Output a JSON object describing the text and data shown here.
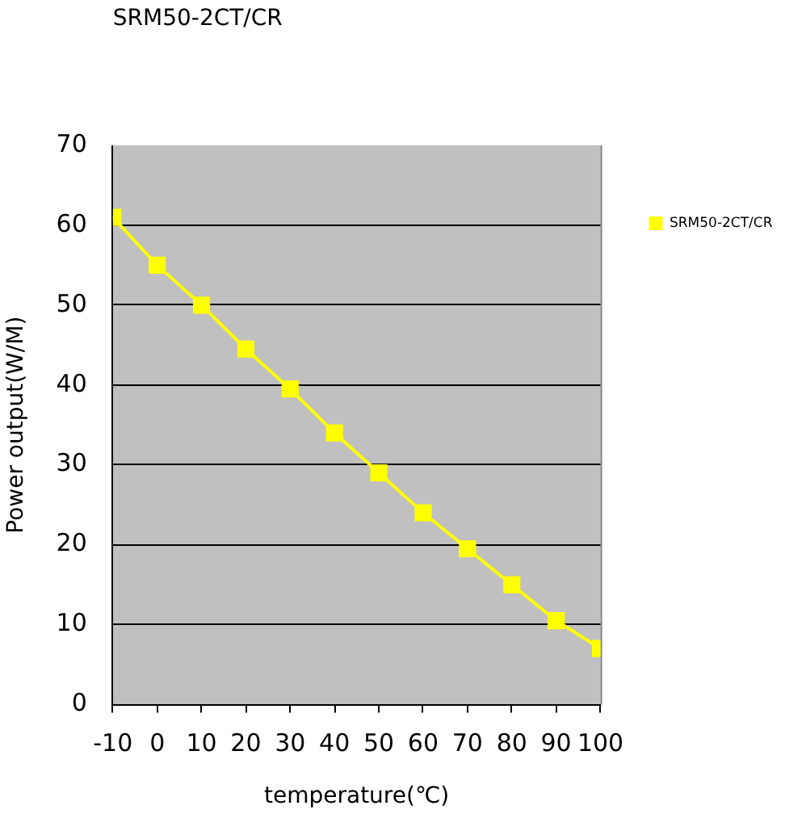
{
  "chart_data": {
    "type": "line",
    "title": "SRM50-2CT/CR",
    "xlabel": "temperature(℃)",
    "ylabel": "Power output(W/M)",
    "x": [
      -10,
      0,
      10,
      20,
      30,
      40,
      50,
      60,
      70,
      80,
      90,
      100
    ],
    "xlim": [
      -10,
      100
    ],
    "xticks": [
      -10,
      0,
      10,
      20,
      30,
      40,
      50,
      60,
      70,
      80,
      90,
      100
    ],
    "ylim": [
      0,
      70
    ],
    "yticks": [
      0,
      10,
      20,
      30,
      40,
      50,
      60,
      70
    ],
    "series": [
      {
        "name": "SRM50-2CT/CR",
        "color": "#ffff00",
        "values": [
          61,
          55,
          50,
          44.5,
          39.5,
          34,
          29,
          24,
          19.5,
          15,
          10.5,
          7
        ]
      }
    ],
    "grid": "y",
    "legend": "right",
    "marker": "square",
    "line_style": "solid"
  }
}
